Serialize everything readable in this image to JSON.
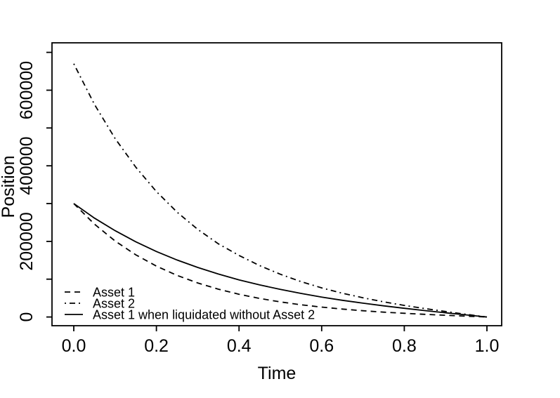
{
  "chart_data": {
    "type": "line",
    "title": "",
    "xlabel": "Time",
    "ylabel": "Position",
    "xlim": [
      0.0,
      1.0
    ],
    "ylim": [
      0,
      700000
    ],
    "grid": false,
    "background": "#ffffff",
    "foreground": "#000000",
    "legend": {
      "position": "bottom-left-inside",
      "border": false
    },
    "x_ticks": {
      "values": [
        0.0,
        0.2,
        0.4,
        0.6,
        0.8,
        1.0
      ],
      "labels": [
        "0.0",
        "0.2",
        "0.4",
        "0.6",
        "0.8",
        "1.0"
      ]
    },
    "y_ticks": {
      "values": [
        0,
        100000,
        200000,
        300000,
        400000,
        500000,
        600000,
        700000
      ],
      "labels": [
        "0",
        "",
        "200000",
        "",
        "400000",
        "",
        "600000",
        ""
      ]
    },
    "x": [
      0,
      0.05,
      0.1,
      0.15,
      0.2,
      0.25,
      0.3,
      0.35,
      0.4,
      0.45,
      0.5,
      0.55,
      0.6,
      0.65,
      0.7,
      0.75,
      0.8,
      0.85,
      0.9,
      0.95,
      1.0
    ],
    "series": [
      {
        "name": "Asset 1",
        "line_style": "dashed",
        "color": "#000000",
        "values": [
          300000,
          245600,
          201000,
          164500,
          134600,
          110100,
          90100,
          73600,
          60100,
          49000,
          39900,
          32300,
          26100,
          20900,
          16600,
          12900,
          9800,
          7000,
          4500,
          2200,
          0
        ]
      },
      {
        "name": "Asset 2",
        "line_style": "dash-dot",
        "color": "#000000",
        "values": [
          670000,
          562400,
          472200,
          396400,
          331800,
          277400,
          231800,
          193400,
          162900,
          135900,
          113000,
          93600,
          77100,
          63000,
          50800,
          40100,
          30700,
          22300,
          14500,
          7100,
          0
        ]
      },
      {
        "name": "Asset 1 when liquidated without Asset 2",
        "line_style": "solid",
        "color": "#000000",
        "values": [
          300000,
          261700,
          228300,
          199000,
          173300,
          150800,
          131000,
          113600,
          98300,
          84800,
          72900,
          62300,
          52800,
          44200,
          36500,
          29500,
          23000,
          16900,
          11100,
          5500,
          0
        ]
      }
    ]
  }
}
